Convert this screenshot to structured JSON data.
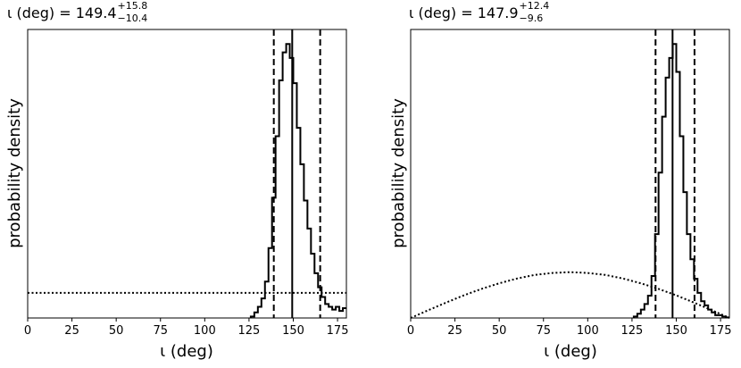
{
  "chart_data": [
    {
      "type": "line",
      "title_prefix": "ι (deg) = ",
      "title_value": "149.4",
      "title_sup": "+15.8",
      "title_sub": "−10.4",
      "xlabel": "ι (deg)",
      "ylabel": "probability density",
      "xlim": [
        0,
        180
      ],
      "ylim": [
        0,
        1
      ],
      "xticks": [
        "0",
        "25",
        "50",
        "75",
        "100",
        "125",
        "150",
        "175"
      ],
      "median": 149.4,
      "ci_low": 139.0,
      "ci_high": 165.2,
      "series": [
        {
          "style": "histogram-step",
          "bin_width": 2,
          "x": [
            126,
            128,
            130,
            132,
            134,
            136,
            138,
            140,
            142,
            144,
            146,
            148,
            150,
            152,
            154,
            156,
            158,
            160,
            162,
            164,
            166,
            168,
            170,
            172,
            174,
            176,
            178
          ],
          "values": [
            0.005,
            0.02,
            0.04,
            0.07,
            0.13,
            0.25,
            0.43,
            0.65,
            0.85,
            0.95,
            0.98,
            0.93,
            0.84,
            0.68,
            0.55,
            0.42,
            0.32,
            0.23,
            0.16,
            0.11,
            0.075,
            0.05,
            0.04,
            0.03,
            0.04,
            0.025,
            0.035
          ]
        },
        {
          "style": "dotted-prior",
          "x": [
            0,
            180
          ],
          "values": [
            0.09,
            0.09
          ]
        }
      ]
    },
    {
      "type": "line",
      "title_prefix": "ι (deg) = ",
      "title_value": "147.9",
      "title_sup": "+12.4",
      "title_sub": "−9.6",
      "xlabel": "ι (deg)",
      "ylabel": "probability density",
      "xlim": [
        0,
        180
      ],
      "ylim": [
        0,
        1
      ],
      "xticks": [
        "0",
        "25",
        "50",
        "75",
        "100",
        "125",
        "150",
        "175"
      ],
      "median": 147.9,
      "ci_low": 138.3,
      "ci_high": 160.3,
      "series": [
        {
          "style": "histogram-step",
          "bin_width": 2,
          "x": [
            126,
            128,
            130,
            132,
            134,
            136,
            138,
            140,
            142,
            144,
            146,
            148,
            150,
            152,
            154,
            156,
            158,
            160,
            162,
            164,
            166,
            168,
            170,
            172,
            174,
            176,
            178
          ],
          "values": [
            0.005,
            0.015,
            0.03,
            0.05,
            0.08,
            0.15,
            0.3,
            0.52,
            0.72,
            0.86,
            0.93,
            0.98,
            0.88,
            0.65,
            0.45,
            0.3,
            0.21,
            0.14,
            0.09,
            0.06,
            0.045,
            0.03,
            0.02,
            0.01,
            0.01,
            0.005,
            0.002
          ]
        },
        {
          "style": "dotted-prior",
          "x": [
            0,
            10,
            20,
            30,
            40,
            50,
            60,
            70,
            80,
            90,
            100,
            110,
            120,
            130,
            140,
            150,
            160,
            170,
            180
          ],
          "values": [
            0.0,
            0.028,
            0.055,
            0.081,
            0.104,
            0.124,
            0.141,
            0.154,
            0.161,
            0.164,
            0.161,
            0.154,
            0.141,
            0.124,
            0.104,
            0.081,
            0.055,
            0.028,
            0.0
          ]
        }
      ]
    }
  ]
}
